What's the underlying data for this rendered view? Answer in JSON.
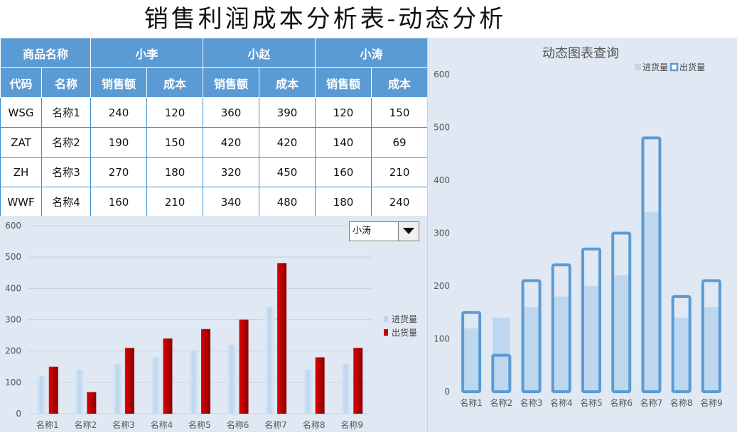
{
  "title": "销售利润成本分析表-动态分析",
  "table": {
    "group_headers": [
      "商品名称",
      "小李",
      "小赵",
      "小涛"
    ],
    "sub_headers": [
      "代码",
      "名称",
      "销售额",
      "成本",
      "销售额",
      "成本",
      "销售额",
      "成本"
    ],
    "rows": [
      [
        "WSG",
        "名称1",
        "240",
        "120",
        "360",
        "390",
        "120",
        "150"
      ],
      [
        "ZAT",
        "名称2",
        "190",
        "150",
        "420",
        "420",
        "140",
        "69"
      ],
      [
        "ZH",
        "名称3",
        "270",
        "180",
        "320",
        "450",
        "160",
        "210"
      ],
      [
        "WWF",
        "名称4",
        "160",
        "210",
        "340",
        "480",
        "180",
        "240"
      ]
    ]
  },
  "dropdown": {
    "value": "小涛"
  },
  "colors": {
    "header_bg": "#5b9bd5",
    "in_bar": "#bdd7ee",
    "out_bar_left": "#c00000",
    "out_bar_right": "#5b9bd5",
    "panel_bg": "#dfe8f3"
  },
  "chart_data": [
    {
      "type": "bar",
      "title": "",
      "categories": [
        "名称1",
        "名称2",
        "名称3",
        "名称4",
        "名称5",
        "名称6",
        "名称7",
        "名称8",
        "名称9"
      ],
      "series": [
        {
          "name": "进货量",
          "values": [
            120,
            140,
            160,
            180,
            200,
            220,
            340,
            140,
            160
          ]
        },
        {
          "name": "出货量",
          "values": [
            150,
            69,
            210,
            240,
            270,
            300,
            480,
            180,
            210
          ]
        }
      ],
      "ylim": [
        0,
        600
      ],
      "yticks": [
        0,
        100,
        200,
        300,
        400,
        500,
        600
      ],
      "legend": "right",
      "grid": true
    },
    {
      "type": "bar",
      "title": "动态图表查询",
      "categories": [
        "名称1",
        "名称2",
        "名称3",
        "名称4",
        "名称5",
        "名称6",
        "名称7",
        "名称8",
        "名称9"
      ],
      "series": [
        {
          "name": "进货量",
          "values": [
            120,
            140,
            160,
            180,
            200,
            220,
            340,
            140,
            160
          ]
        },
        {
          "name": "出货量",
          "values": [
            150,
            69,
            210,
            240,
            270,
            300,
            480,
            180,
            210
          ]
        }
      ],
      "ylim": [
        0,
        600
      ],
      "yticks": [
        0,
        100,
        200,
        300,
        400,
        500,
        600
      ],
      "legend": "top",
      "grid": false
    }
  ]
}
